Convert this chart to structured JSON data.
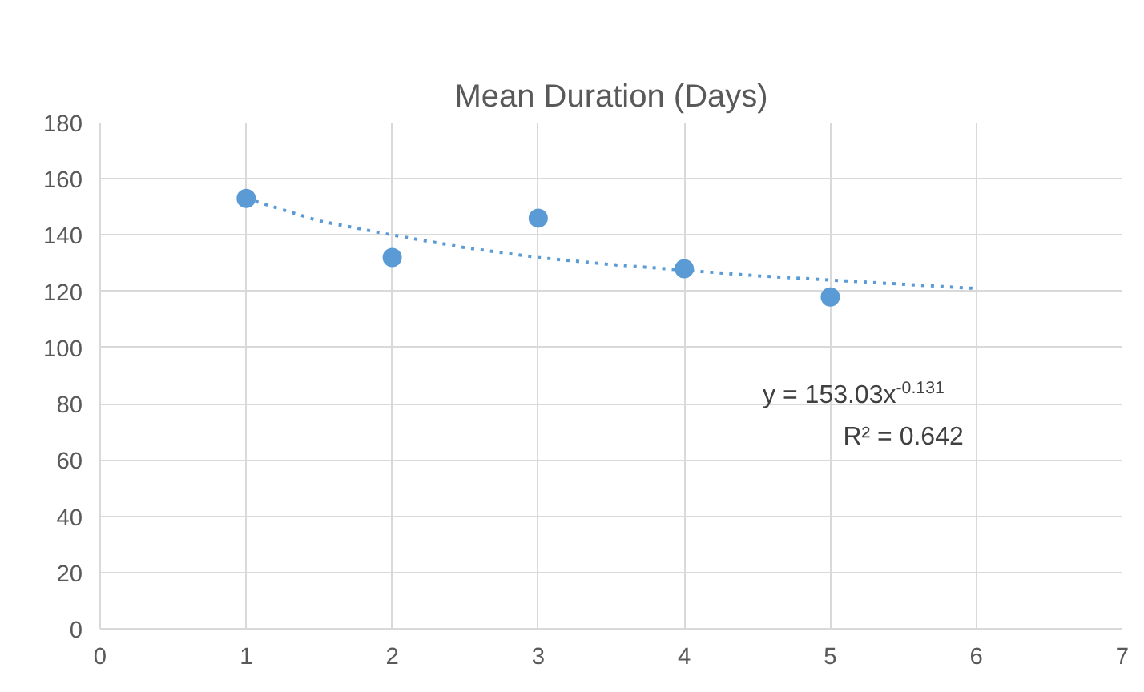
{
  "chart_data": {
    "type": "scatter",
    "title": "Mean Duration (Days)",
    "x": [
      1,
      2,
      3,
      4,
      5
    ],
    "xlim": [
      0,
      7
    ],
    "xticks": [
      0,
      1,
      2,
      3,
      4,
      5,
      6,
      7
    ],
    "ylim": [
      0,
      180
    ],
    "yticks": [
      0,
      20,
      40,
      60,
      80,
      100,
      120,
      140,
      160,
      180
    ],
    "grid": true,
    "marker": "circle",
    "series": [
      {
        "color": "#5b9bd5",
        "values": [
          153,
          132,
          146,
          128,
          118
        ]
      },
      {
        "type": "line",
        "color": "#5b9bd5",
        "line_style": "dotted",
        "marker": "none",
        "x": [
          1,
          1.5,
          2,
          2.5,
          3,
          3.5,
          4,
          4.5,
          5,
          5.5,
          6
        ],
        "values": [
          153,
          145,
          140,
          135.5,
          132,
          129.5,
          127.5,
          125.5,
          124,
          122.5,
          121
        ]
      }
    ],
    "annotations": [
      "y = 153.03x$^{-0.131}$",
      "R² = 0.642"
    ]
  }
}
